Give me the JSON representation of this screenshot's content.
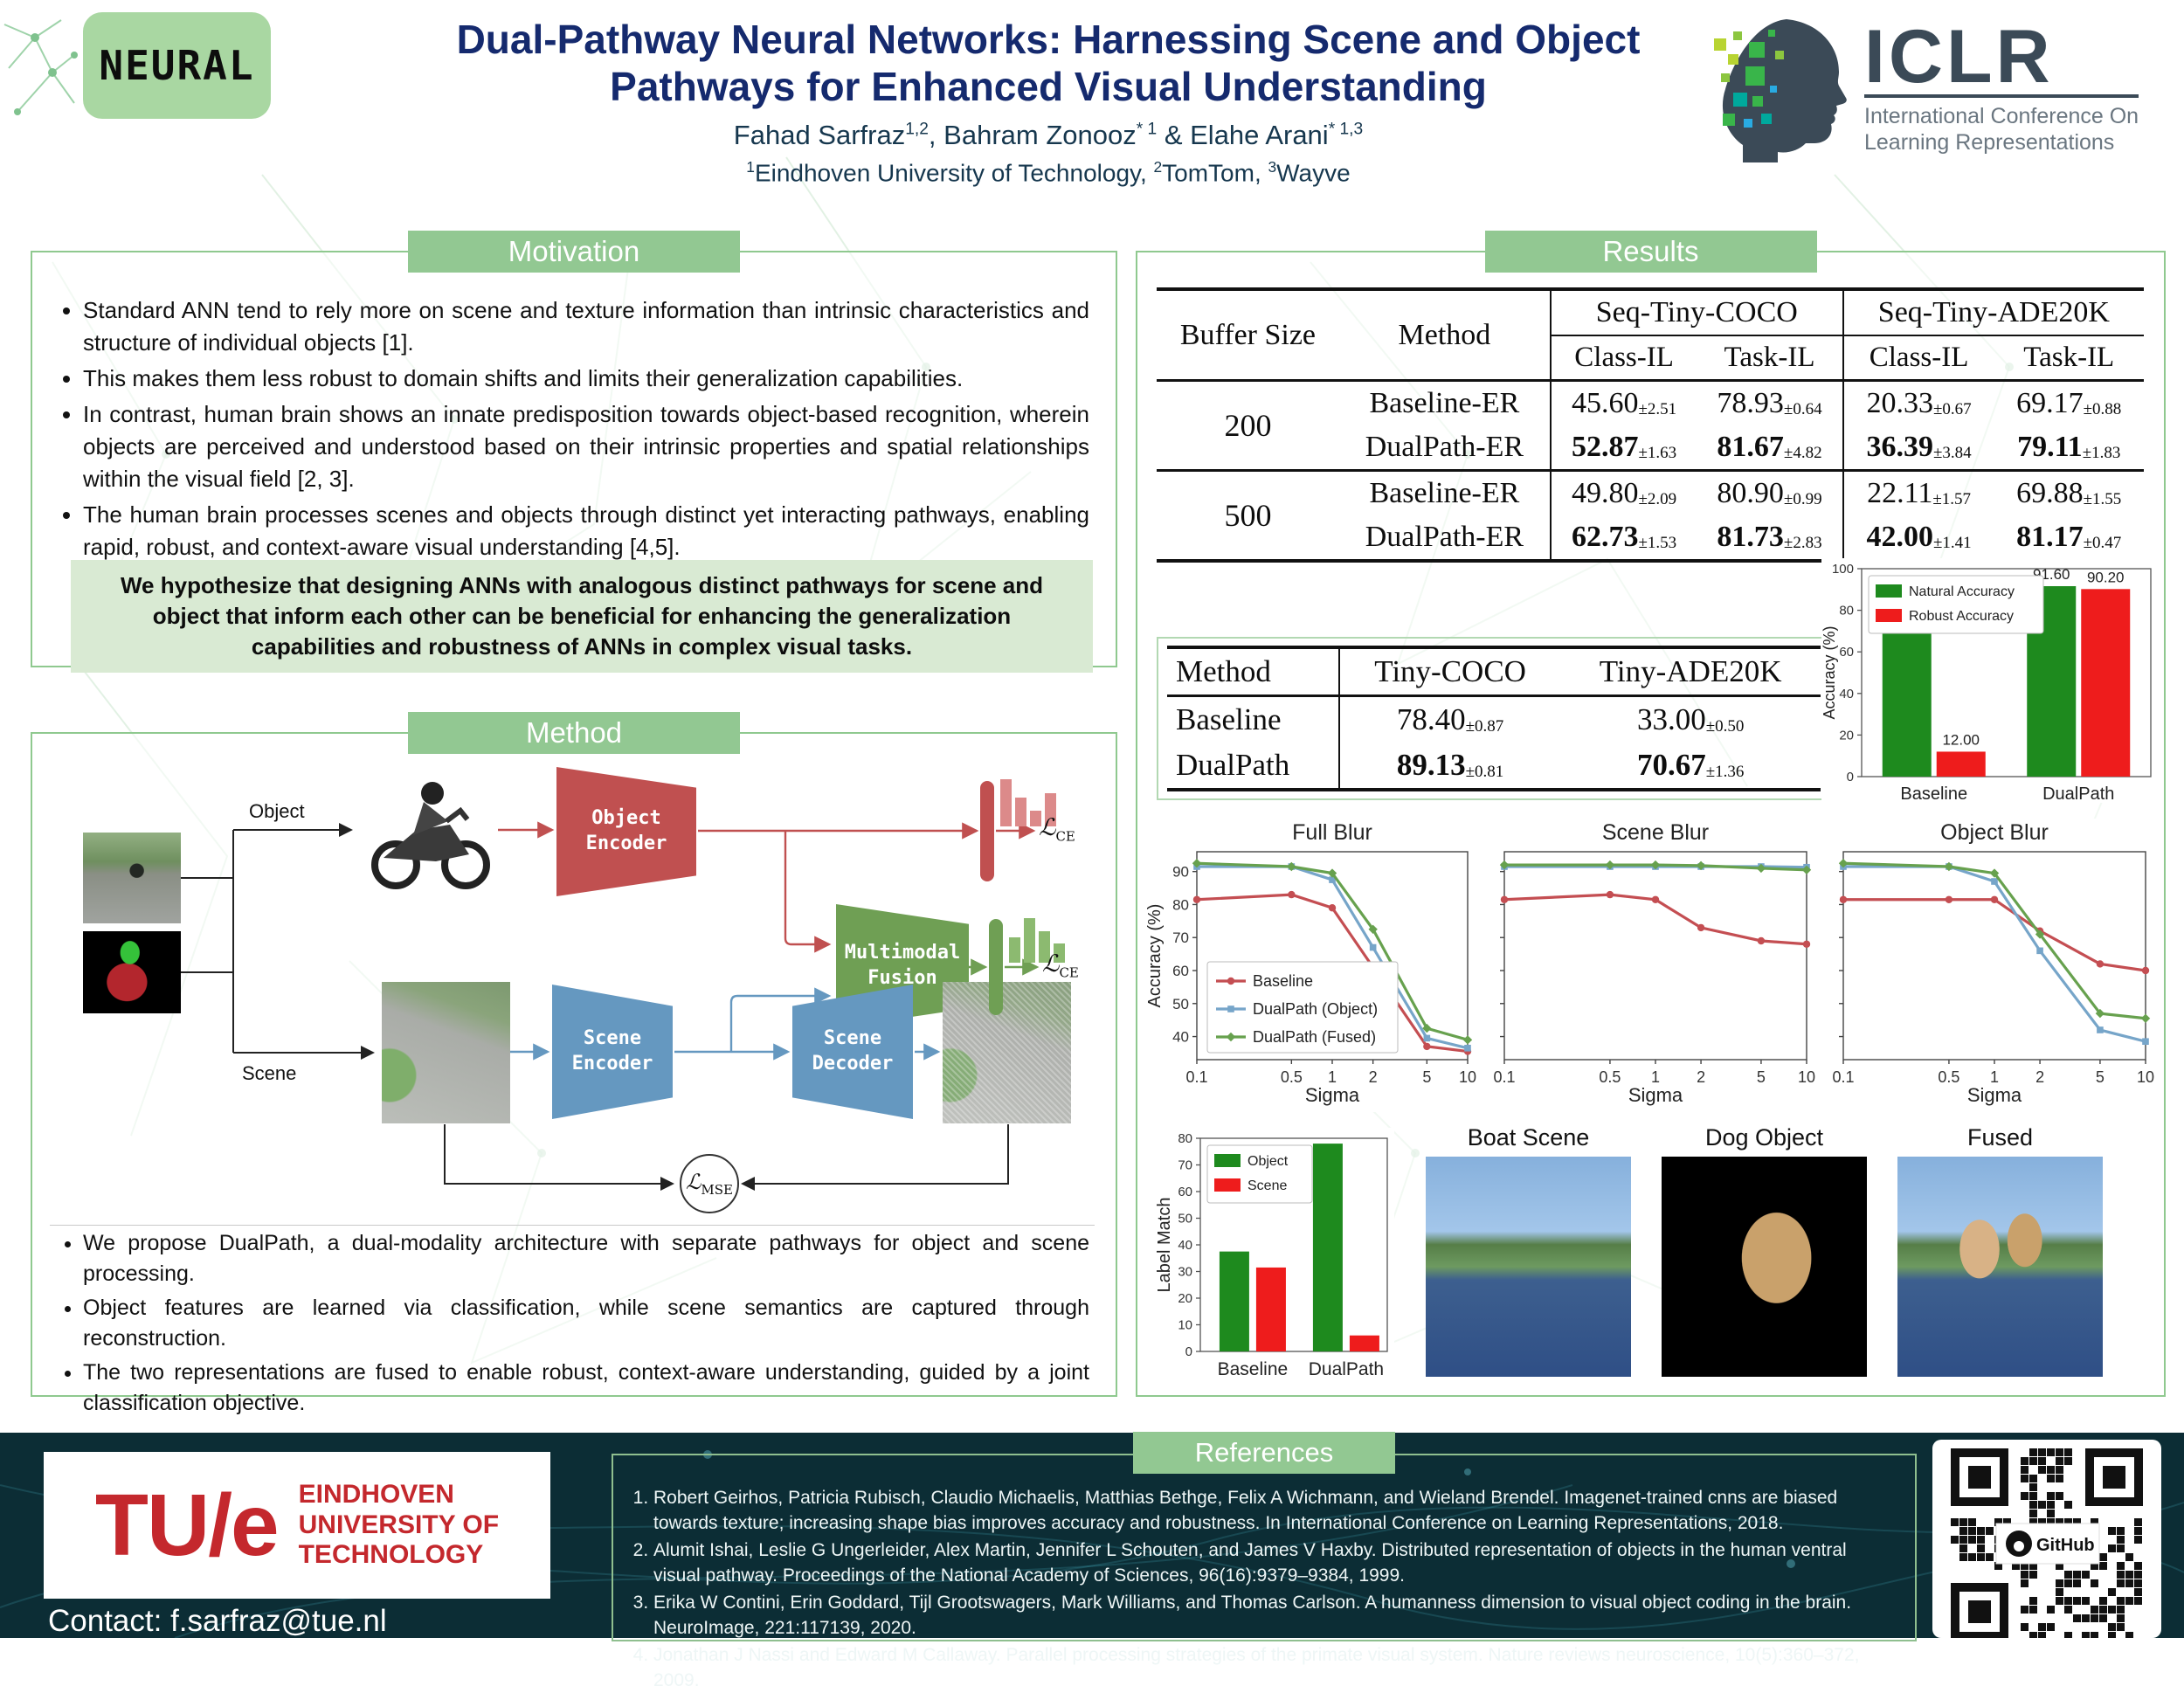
{
  "header": {
    "logo_text": "NEURAL",
    "title_line1": "Dual-Pathway Neural Networks: Harnessing Scene and Object",
    "title_line2": "Pathways for Enhanced Visual Understanding",
    "authors": [
      {
        "name": "Fahad Sarfraz",
        "sup": "1,2",
        "sep": ", "
      },
      {
        "name": "Bahram Zonooz",
        "sup": "* 1",
        "sep": " & "
      },
      {
        "name": "Elahe Arani",
        "sup": "* 1,3",
        "sep": ""
      }
    ],
    "affiliations": [
      {
        "sup": "1",
        "name": "Eindhoven University of Technology",
        "sep": ", "
      },
      {
        "sup": "2",
        "name": "TomTom",
        "sep": ", "
      },
      {
        "sup": "3",
        "name": "Wayve",
        "sep": ""
      }
    ],
    "iclr": {
      "acronym": "ICLR",
      "line1": "International Conference On",
      "line2": "Learning Representations"
    }
  },
  "motivation": {
    "heading": "Motivation",
    "bullets": [
      "Standard ANN tend to rely more on scene and texture information than intrinsic characteristics and structure of individual objects [1].",
      "This makes them less robust to domain shifts and limits their generalization capabilities.",
      "In contrast, human brain shows an innate predisposition towards object-based recognition, wherein objects are perceived and understood based on their intrinsic properties and spatial relationships within the visual field [2, 3].",
      "The human brain processes scenes and objects through distinct yet interacting pathways, enabling rapid, robust, and context-aware visual understanding [4,5]."
    ],
    "hypothesis": "We hypothesize that designing ANNs with analogous distinct pathways for scene and object that inform each other can be beneficial for enhancing the generalization capabilities and robustness of ANNs in complex visual tasks."
  },
  "method": {
    "heading": "Method",
    "diagram": {
      "object_label": "Object",
      "scene_label": "Scene",
      "object_encoder": [
        "Object",
        "Encoder"
      ],
      "multimodal_fusion": [
        "Multimodal",
        "Fusion"
      ],
      "scene_encoder": [
        "Scene",
        "Encoder"
      ],
      "scene_decoder": [
        "Scene",
        "Decoder"
      ],
      "loss_ce": {
        "main": "ℒ",
        "sub": "CE"
      },
      "loss_mse": {
        "main": "ℒ",
        "sub": "MSE"
      }
    },
    "bullets": [
      "We propose DualPath, a dual-modality architecture with separate pathways for object and scene processing.",
      "Object features are learned via classification, while scene semantics are captured through reconstruction.",
      "The two representations are fused to enable robust, context-aware understanding, guided by a joint classification objective."
    ]
  },
  "results": {
    "heading": "Results",
    "table1": {
      "row_headers": [
        "Buffer Size",
        "Method"
      ],
      "col_groups": [
        "Seq-Tiny-COCO",
        "Seq-Tiny-ADE20K"
      ],
      "sub_cols": [
        "Class-IL",
        "Task-IL",
        "Class-IL",
        "Task-IL"
      ],
      "groups": [
        {
          "buffer": "200",
          "rows": [
            {
              "method": "Baseline-ER",
              "bold": false,
              "cells": [
                [
                  "45.60",
                  "±2.51"
                ],
                [
                  "78.93",
                  "±0.64"
                ],
                [
                  "20.33",
                  "±0.67"
                ],
                [
                  "69.17",
                  "±0.88"
                ]
              ]
            },
            {
              "method": "DualPath-ER",
              "bold": true,
              "cells": [
                [
                  "52.87",
                  "±1.63"
                ],
                [
                  "81.67",
                  "±4.82"
                ],
                [
                  "36.39",
                  "±3.84"
                ],
                [
                  "79.11",
                  "±1.83"
                ]
              ]
            }
          ]
        },
        {
          "buffer": "500",
          "rows": [
            {
              "method": "Baseline-ER",
              "bold": false,
              "cells": [
                [
                  "49.80",
                  "±2.09"
                ],
                [
                  "80.90",
                  "±0.99"
                ],
                [
                  "22.11",
                  "±1.57"
                ],
                [
                  "69.88",
                  "±1.55"
                ]
              ]
            },
            {
              "method": "DualPath-ER",
              "bold": true,
              "cells": [
                [
                  "62.73",
                  "±1.53"
                ],
                [
                  "81.73",
                  "±2.83"
                ],
                [
                  "42.00",
                  "±1.41"
                ],
                [
                  "81.17",
                  "±0.47"
                ]
              ]
            }
          ]
        }
      ]
    },
    "table2": {
      "cols": [
        "Method",
        "Tiny-COCO",
        "Tiny-ADE20K"
      ],
      "rows": [
        {
          "method": "Baseline",
          "bold": false,
          "cells": [
            [
              "78.40",
              "±0.87"
            ],
            [
              "33.00",
              "±0.50"
            ]
          ]
        },
        {
          "method": "DualPath",
          "bold": true,
          "cells": [
            [
              "89.13",
              "±0.81"
            ],
            [
              "70.67",
              "±1.36"
            ]
          ]
        }
      ]
    },
    "image_captions": [
      "Boat Scene",
      "Dog Object",
      "Fused"
    ]
  },
  "references": {
    "heading": "References",
    "items": [
      "Robert Geirhos, Patricia Rubisch, Claudio Michaelis, Matthias Bethge, Felix A Wichmann, and Wieland Brendel. Imagenet-trained cnns are biased towards texture; increasing shape bias improves accuracy and robustness. In International Conference on Learning Representations, 2018.",
      "Alumit Ishai, Leslie G Ungerleider, Alex Martin, Jennifer L Schouten, and James V Haxby. Distributed representation of objects in the human ventral visual pathway. Proceedings of the National Academy of Sciences, 96(16):9379–9384, 1999.",
      "Erika W Contini, Erin Goddard, Tijl Grootswagers, Mark Williams, and Thomas Carlson. A humanness dimension to visual object coding in the brain. NeuroImage, 221:117139, 2020.",
      "Jonathan J Nassi and Edward M Callaway. Parallel processing strategies of the primate visual system. Nature reviews neuroscience, 10(5):360–372, 2009."
    ]
  },
  "footer": {
    "contact": "Contact: f.sarfraz@tue.nl",
    "tue": {
      "acronym": "TU/e",
      "lines": [
        "EINDHOVEN",
        "UNIVERSITY OF",
        "TECHNOLOGY"
      ]
    },
    "github_label": "GitHub"
  },
  "colors": {
    "title_navy": "#152a6e",
    "section_green": "#92c892",
    "hypothesis_bg": "#d9ead3",
    "footer_teal": "#0c2d35",
    "object_red": "#c05050",
    "fusion_green": "#6f9f54",
    "scene_blue": "#6598c0",
    "tue_red": "#c4282d"
  },
  "chart_data": [
    {
      "id": "robustness",
      "type": "bar",
      "title": "",
      "categories": [
        "Baseline",
        "DualPath"
      ],
      "series": [
        {
          "name": "Natural Accuracy",
          "color": "#1e8a1e",
          "values": [
            79.6,
            91.6
          ]
        },
        {
          "name": "Robust Accuracy",
          "color": "#ee1c1c",
          "values": [
            12.0,
            90.2
          ]
        }
      ],
      "ylabel": "Accuracy (%)",
      "ylim": [
        0,
        100
      ],
      "yticks": [
        0,
        20,
        40,
        60,
        80,
        100
      ],
      "value_labels": true,
      "legend_position": "upper left"
    },
    {
      "id": "full-blur",
      "type": "line",
      "title": "Full Blur",
      "xlabel": "Sigma",
      "ylabel": "Accuracy (%)",
      "xscale": "log",
      "x": [
        0.1,
        0.5,
        1,
        2,
        5,
        10
      ],
      "ylim": [
        33,
        96
      ],
      "yticks": [
        40,
        50,
        60,
        70,
        80,
        90
      ],
      "legend": true,
      "series": [
        {
          "name": "Baseline",
          "color": "#c44e52",
          "marker": "circle",
          "values": [
            81.5,
            83.0,
            79.0,
            61.0,
            37.0,
            35.5
          ]
        },
        {
          "name": "DualPath (Object)",
          "color": "#76a5c9",
          "marker": "square",
          "values": [
            91.5,
            91.5,
            87.5,
            67.0,
            39.5,
            36.5
          ]
        },
        {
          "name": "DualPath (Fused)",
          "color": "#67a14e",
          "marker": "diamond",
          "values": [
            92.5,
            91.5,
            89.5,
            72.5,
            42.5,
            39.0
          ]
        }
      ]
    },
    {
      "id": "scene-blur",
      "type": "line",
      "title": "Scene Blur",
      "xlabel": "Sigma",
      "ylabel": "Accuracy (%)",
      "xscale": "log",
      "x": [
        0.1,
        0.5,
        1,
        2,
        5,
        10
      ],
      "ylim": [
        33,
        96
      ],
      "yticks": [
        40,
        50,
        60,
        70,
        80,
        90
      ],
      "legend": false,
      "series": [
        {
          "name": "Baseline",
          "color": "#c44e52",
          "marker": "circle",
          "values": [
            81.5,
            83.0,
            81.5,
            73.0,
            69.0,
            68.0
          ]
        },
        {
          "name": "DualPath (Object)",
          "color": "#76a5c9",
          "marker": "square",
          "values": [
            91.5,
            91.5,
            91.5,
            91.5,
            91.5,
            91.3
          ]
        },
        {
          "name": "DualPath (Fused)",
          "color": "#67a14e",
          "marker": "diamond",
          "values": [
            92.0,
            92.0,
            92.0,
            91.8,
            91.0,
            90.5
          ]
        }
      ]
    },
    {
      "id": "object-blur",
      "type": "line",
      "title": "Object Blur",
      "xlabel": "Sigma",
      "ylabel": "Accuracy (%)",
      "xscale": "log",
      "x": [
        0.1,
        0.5,
        1,
        2,
        5,
        10
      ],
      "ylim": [
        33,
        96
      ],
      "yticks": [
        40,
        50,
        60,
        70,
        80,
        90
      ],
      "legend": false,
      "series": [
        {
          "name": "Baseline",
          "color": "#c44e52",
          "marker": "circle",
          "values": [
            81.5,
            81.5,
            81.5,
            72.0,
            62.0,
            60.0
          ]
        },
        {
          "name": "DualPath (Object)",
          "color": "#76a5c9",
          "marker": "square",
          "values": [
            91.5,
            91.5,
            87.0,
            66.0,
            42.0,
            38.5
          ]
        },
        {
          "name": "DualPath (Fused)",
          "color": "#67a14e",
          "marker": "diamond",
          "values": [
            92.5,
            91.5,
            89.5,
            71.0,
            47.0,
            45.5
          ]
        }
      ]
    },
    {
      "id": "label-match",
      "type": "bar",
      "title": "",
      "categories": [
        "Baseline",
        "DualPath"
      ],
      "series": [
        {
          "name": "Object",
          "color": "#1e8a1e",
          "values": [
            37.5,
            78.0
          ]
        },
        {
          "name": "Scene",
          "color": "#ee1c1c",
          "values": [
            31.5,
            6.0
          ]
        }
      ],
      "ylabel": "Label Match",
      "ylim": [
        0,
        80
      ],
      "yticks": [
        0,
        10,
        20,
        30,
        40,
        50,
        60,
        70,
        80
      ],
      "value_labels": false,
      "legend_position": "upper left"
    }
  ]
}
